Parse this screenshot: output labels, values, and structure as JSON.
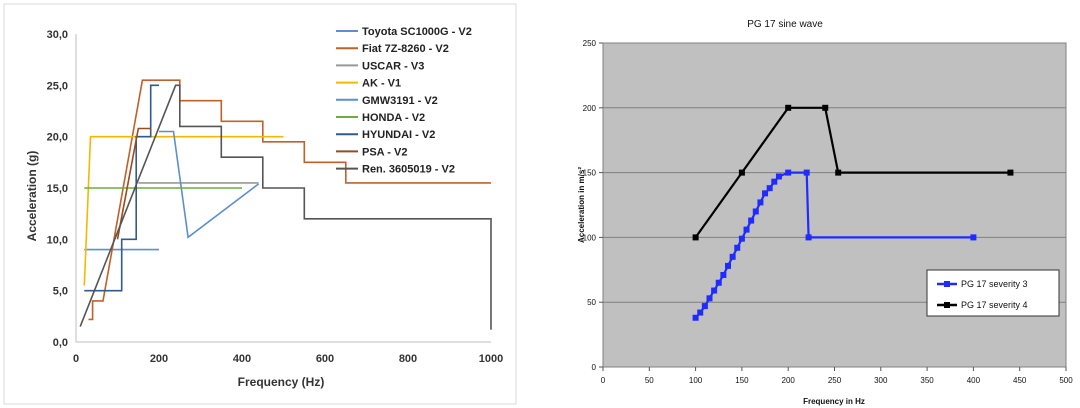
{
  "chart_data": [
    {
      "type": "line",
      "title": "",
      "xlabel": "Frequency (Hz)",
      "ylabel": "Acceleration (g)",
      "xlim": [
        0,
        1000
      ],
      "ylim": [
        0,
        30
      ],
      "xticks": [
        "0",
        "200",
        "400",
        "600",
        "800",
        "1000"
      ],
      "yticks": [
        "0,0",
        "5,0",
        "10,0",
        "15,0",
        "20,0",
        "25,0",
        "30,0"
      ],
      "grid": false,
      "legend_position": "top-right",
      "series": [
        {
          "name": "Toyota SC1000G - V2",
          "color": "#5b8fd0",
          "points": [
            [
              20,
              9
            ],
            [
              200,
              9
            ]
          ]
        },
        {
          "name": "Fiat 7Z-8260 - V2",
          "color": "#c0602b",
          "points": [
            [
              30,
              2.2
            ],
            [
              40,
              2.2
            ],
            [
              40,
              4
            ],
            [
              65,
              4
            ],
            [
              65,
              4
            ],
            [
              160,
              25.5
            ],
            [
              250,
              25.5
            ],
            [
              250,
              23.5
            ],
            [
              350,
              23.5
            ],
            [
              350,
              21.5
            ],
            [
              450,
              21.5
            ],
            [
              450,
              19.5
            ],
            [
              550,
              19.5
            ],
            [
              550,
              17.5
            ],
            [
              650,
              17.5
            ],
            [
              650,
              15.5
            ],
            [
              1000,
              15.5
            ]
          ]
        },
        {
          "name": "USCAR - V3",
          "color": "#999999",
          "points": [
            [
              150,
              15.5
            ],
            [
              440,
              15.5
            ]
          ]
        },
        {
          "name": "AK - V1",
          "color": "#f5b800",
          "points": [
            [
              20,
              5.5
            ],
            [
              35,
              20
            ],
            [
              500,
              20
            ]
          ]
        },
        {
          "name": "GMW3191 - V2",
          "color": "#5b8fd0",
          "points": [
            [
              200,
              20.5
            ],
            [
              235,
              20.5
            ],
            [
              270,
              10.2
            ],
            [
              440,
              15.4
            ]
          ]
        },
        {
          "name": "HONDA - V2",
          "color": "#6cad3c",
          "points": [
            [
              20,
              15
            ],
            [
              400,
              15
            ]
          ]
        },
        {
          "name": "HYUNDAI - V2",
          "color": "#2f5b8f",
          "points": [
            [
              20,
              5
            ],
            [
              110,
              5
            ],
            [
              110,
              10
            ],
            [
              145,
              10
            ],
            [
              145,
              20
            ],
            [
              180,
              20
            ],
            [
              180,
              25
            ],
            [
              200,
              25
            ]
          ]
        },
        {
          "name": "PSA - V2",
          "color": "#9b4a1e",
          "points": [
            [
              100,
              10
            ],
            [
              150,
              20.8
            ],
            [
              180,
              20.8
            ],
            [
              180,
              20.8
            ]
          ]
        },
        {
          "name": "Ren. 3605019 - V2",
          "color": "#555555",
          "points": [
            [
              10,
              1.5
            ],
            [
              240,
              25
            ],
            [
              250,
              25
            ],
            [
              250,
              21
            ],
            [
              350,
              21
            ],
            [
              350,
              18
            ],
            [
              450,
              18
            ],
            [
              450,
              15
            ],
            [
              550,
              15
            ],
            [
              550,
              12
            ],
            [
              1000,
              12
            ],
            [
              1000,
              1.2
            ]
          ]
        }
      ]
    },
    {
      "type": "line",
      "title": "PG 17 sine wave",
      "xlabel": "Frequency in Hz",
      "ylabel": "Acceleration in m/s²",
      "xlim": [
        0,
        500
      ],
      "ylim": [
        0,
        250
      ],
      "xticks": [
        "0",
        "50",
        "100",
        "150",
        "200",
        "250",
        "300",
        "350",
        "400",
        "450",
        "500"
      ],
      "yticks": [
        "0",
        "50",
        "100",
        "150",
        "200",
        "250"
      ],
      "grid": true,
      "legend_position": "bottom-right",
      "series": [
        {
          "name": "PG 17 severity 3",
          "color": "#1f2bff",
          "points": [
            [
              100,
              38
            ],
            [
              105,
              42
            ],
            [
              110,
              47
            ],
            [
              115,
              53
            ],
            [
              120,
              59
            ],
            [
              125,
              65
            ],
            [
              130,
              71
            ],
            [
              135,
              78
            ],
            [
              140,
              85
            ],
            [
              145,
              92
            ],
            [
              150,
              99
            ],
            [
              155,
              106
            ],
            [
              160,
              113
            ],
            [
              165,
              120
            ],
            [
              170,
              127
            ],
            [
              175,
              134
            ],
            [
              180,
              138
            ],
            [
              185,
              143
            ],
            [
              190,
              147
            ],
            [
              200,
              150
            ],
            [
              220,
              150
            ],
            [
              222,
              100
            ],
            [
              400,
              100
            ]
          ]
        },
        {
          "name": "PG 17 severity 4",
          "color": "#000000",
          "points": [
            [
              100,
              100
            ],
            [
              150,
              150
            ],
            [
              200,
              200
            ],
            [
              240,
              200
            ],
            [
              254,
              150
            ],
            [
              440,
              150
            ]
          ]
        }
      ]
    }
  ]
}
